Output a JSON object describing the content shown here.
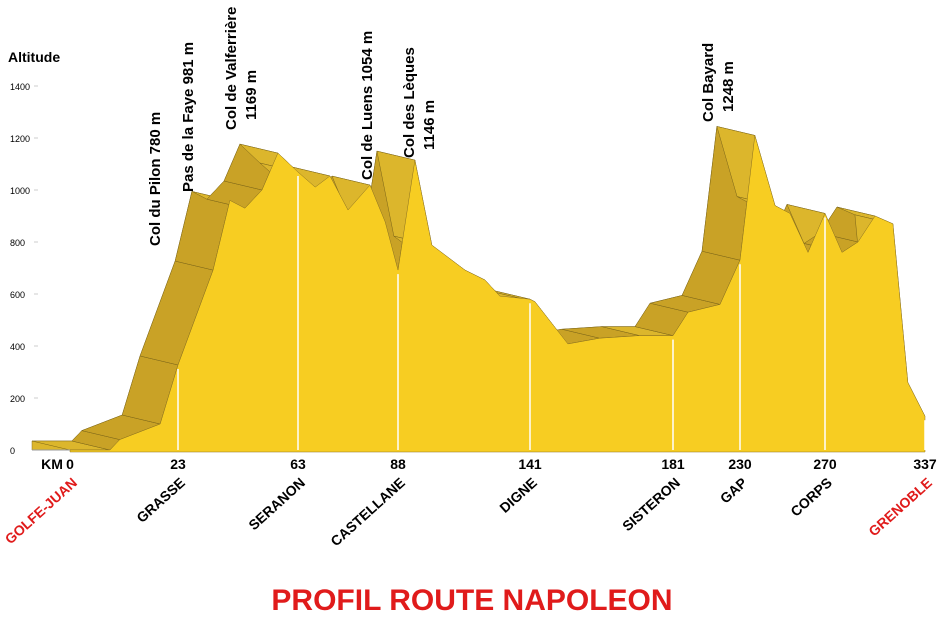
{
  "chart_data": {
    "type": "area",
    "title": "PROFIL ROUTE NAPOLEON",
    "title_color": "#e01b1b",
    "y_label": "Altitude",
    "x_label": "KM",
    "x": [
      0,
      8.5,
      10.6,
      19.2,
      23,
      34.7,
      40.3,
      45.3,
      51,
      56.3,
      63,
      67.3,
      71,
      75.5,
      81,
      84.8,
      88,
      94.8,
      101.6,
      114.9,
      122.9,
      128.9,
      141,
      142.4,
      151.6,
      160.5,
      171.7,
      181,
      192,
      215.4,
      230,
      237,
      246.5,
      253.5,
      262,
      270,
      281.4,
      292.1,
      303.5,
      315.5,
      325.5,
      337
    ],
    "values": [
      0,
      0,
      40,
      100,
      327,
      692,
      960,
      930,
      1000,
      1142,
      1069,
      1011,
      1054,
      923,
      1019,
      877,
      692,
      1115,
      788,
      692,
      654,
      592,
      580,
      570,
      408,
      430,
      440,
      440,
      530,
      560,
      730,
      1210,
      940,
      910,
      760,
      910,
      760,
      800,
      900,
      870,
      260,
      130
    ],
    "color": "#f7cd22",
    "side_color": "#c9a226",
    "back_color": "#dcb62c",
    "ylim": [
      0,
      1400
    ],
    "yticks": [
      0,
      200,
      400,
      600,
      800,
      1000,
      1200,
      1400
    ],
    "xticks": [
      0,
      23,
      63,
      88,
      141,
      181,
      230,
      270,
      337
    ],
    "places": [
      {
        "name": "GOLFE-JUAN",
        "color": "#e01b1b"
      },
      {
        "name": "GRASSE",
        "color": "#000000"
      },
      {
        "name": "SERANON",
        "color": "#000000"
      },
      {
        "name": "CASTELLANE",
        "color": "#000000"
      },
      {
        "name": "DIGNE",
        "color": "#000000"
      },
      {
        "name": "SISTERON",
        "color": "#000000"
      },
      {
        "name": "GAP",
        "color": "#000000"
      },
      {
        "name": "CORPS",
        "color": "#000000"
      },
      {
        "name": "GRENOBLE",
        "color": "#e01b1b"
      }
    ],
    "annotations": [
      {
        "lines": [
          "Col du Pilon 780 m"
        ]
      },
      {
        "lines": [
          "Pas de la Faye 981 m"
        ]
      },
      {
        "lines": [
          "Col de Valferrière",
          "1169 m"
        ]
      },
      {
        "lines": [
          "Col de Luens 1054 m"
        ]
      },
      {
        "lines": [
          "Col des Lèques",
          "1146 m"
        ]
      },
      {
        "lines": [
          "Col Bayard",
          "1248 m"
        ]
      }
    ]
  }
}
